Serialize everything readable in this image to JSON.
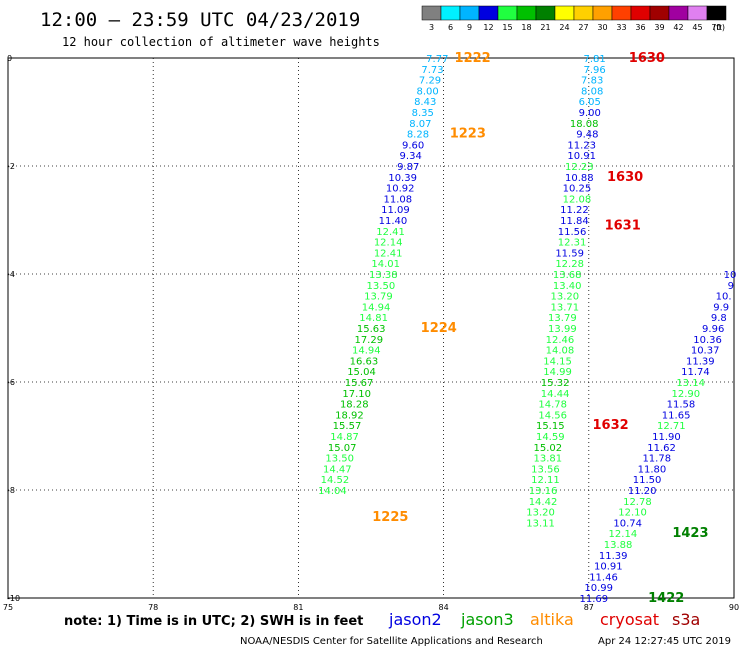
{
  "header": {
    "title": "12:00 — 23:59 UTC 04/23/2019",
    "subtitle": "12 hour collection of altimeter wave heights"
  },
  "colorbar": {
    "unit": "(ft)",
    "steps": [
      {
        "label": "3",
        "color": "#808080"
      },
      {
        "label": "6",
        "color": "#00f0ff"
      },
      {
        "label": "9",
        "color": "#00b4ff"
      },
      {
        "label": "12",
        "color": "#0000e0"
      },
      {
        "label": "15",
        "color": "#20ff40"
      },
      {
        "label": "18",
        "color": "#00c000"
      },
      {
        "label": "21",
        "color": "#008000"
      },
      {
        "label": "24",
        "color": "#ffff00"
      },
      {
        "label": "27",
        "color": "#ffd000"
      },
      {
        "label": "30",
        "color": "#ffa000"
      },
      {
        "label": "33",
        "color": "#ff4000"
      },
      {
        "label": "36",
        "color": "#e00000"
      },
      {
        "label": "39",
        "color": "#a00000"
      },
      {
        "label": "42",
        "color": "#a000a0"
      },
      {
        "label": "45",
        "color": "#e080f0"
      },
      {
        "label": "70",
        "color": "#000000"
      }
    ]
  },
  "chart_data": {
    "type": "scatter",
    "xlim": [
      75,
      90
    ],
    "ylim": [
      -10,
      0
    ],
    "xticks": [
      75,
      78,
      81,
      84,
      87,
      90
    ],
    "yticks": [
      0,
      -2,
      -4,
      -6,
      -8,
      -10
    ],
    "grid": true,
    "color_scale": [
      {
        "max": 9,
        "color": "#00b4ff"
      },
      {
        "max": 12,
        "color": "#0000e0"
      },
      {
        "max": 15,
        "color": "#20ff40"
      },
      {
        "max": 21,
        "color": "#00c000"
      }
    ],
    "tracks": [
      {
        "name": "track-1",
        "points": [
          {
            "x": 84.1,
            "y": 0.0,
            "v": "7.77"
          },
          {
            "x": 84.0,
            "y": -0.2,
            "v": "7.73"
          },
          {
            "x": 83.95,
            "y": -0.4,
            "v": "7.29"
          },
          {
            "x": 83.9,
            "y": -0.6,
            "v": "8.00"
          },
          {
            "x": 83.85,
            "y": -0.8,
            "v": "8.43"
          },
          {
            "x": 83.8,
            "y": -1.0,
            "v": "8.35"
          },
          {
            "x": 83.75,
            "y": -1.2,
            "v": "8.07"
          },
          {
            "x": 83.7,
            "y": -1.4,
            "v": "8.28"
          },
          {
            "x": 83.6,
            "y": -1.6,
            "v": "9.60"
          },
          {
            "x": 83.55,
            "y": -1.8,
            "v": "9.34"
          },
          {
            "x": 83.5,
            "y": -2.0,
            "v": "9.87"
          },
          {
            "x": 83.45,
            "y": -2.2,
            "v": "10.39"
          },
          {
            "x": 83.4,
            "y": -2.4,
            "v": "10.92"
          },
          {
            "x": 83.35,
            "y": -2.6,
            "v": "11.08"
          },
          {
            "x": 83.3,
            "y": -2.8,
            "v": "11.09"
          },
          {
            "x": 83.25,
            "y": -3.0,
            "v": "11.40"
          },
          {
            "x": 83.2,
            "y": -3.2,
            "v": "12.41"
          },
          {
            "x": 83.15,
            "y": -3.4,
            "v": "12.14"
          },
          {
            "x": 83.15,
            "y": -3.6,
            "v": "12.41"
          },
          {
            "x": 83.1,
            "y": -3.8,
            "v": "14.01"
          },
          {
            "x": 83.05,
            "y": -4.0,
            "v": "13.38"
          },
          {
            "x": 83.0,
            "y": -4.2,
            "v": "13.50"
          },
          {
            "x": 82.95,
            "y": -4.4,
            "v": "13.79"
          },
          {
            "x": 82.9,
            "y": -4.6,
            "v": "14.94"
          },
          {
            "x": 82.85,
            "y": -4.8,
            "v": "14.81"
          },
          {
            "x": 82.8,
            "y": -5.0,
            "v": "15.63"
          },
          {
            "x": 82.75,
            "y": -5.2,
            "v": "17.29"
          },
          {
            "x": 82.7,
            "y": -5.4,
            "v": "14.94"
          },
          {
            "x": 82.65,
            "y": -5.6,
            "v": "16.63"
          },
          {
            "x": 82.6,
            "y": -5.8,
            "v": "15.04"
          },
          {
            "x": 82.55,
            "y": -6.0,
            "v": "15.67"
          },
          {
            "x": 82.5,
            "y": -6.2,
            "v": "17.10"
          },
          {
            "x": 82.45,
            "y": -6.4,
            "v": "18.28"
          },
          {
            "x": 82.35,
            "y": -6.6,
            "v": "18.92"
          },
          {
            "x": 82.3,
            "y": -6.8,
            "v": "15.57"
          },
          {
            "x": 82.25,
            "y": -7.0,
            "v": "14.87"
          },
          {
            "x": 82.2,
            "y": -7.2,
            "v": "15.07"
          },
          {
            "x": 82.15,
            "y": -7.4,
            "v": "13.50"
          },
          {
            "x": 82.1,
            "y": -7.6,
            "v": "14.47"
          },
          {
            "x": 82.05,
            "y": -7.8,
            "v": "14.52"
          },
          {
            "x": 82.0,
            "y": -8.0,
            "v": "14.04"
          }
        ]
      },
      {
        "name": "track-2",
        "points": [
          {
            "x": 87.35,
            "y": 0.0,
            "v": "7.81"
          },
          {
            "x": 87.35,
            "y": -0.2,
            "v": "7.96"
          },
          {
            "x": 87.3,
            "y": -0.4,
            "v": "7.83"
          },
          {
            "x": 87.3,
            "y": -0.6,
            "v": "8.08"
          },
          {
            "x": 87.25,
            "y": -0.8,
            "v": "6.05"
          },
          {
            "x": 87.25,
            "y": -1.0,
            "v": "9.00"
          },
          {
            "x": 87.2,
            "y": -1.2,
            "v": "18.08"
          },
          {
            "x": 87.2,
            "y": -1.4,
            "v": "9.48"
          },
          {
            "x": 87.15,
            "y": -1.6,
            "v": "11.23"
          },
          {
            "x": 87.15,
            "y": -1.8,
            "v": "10.91"
          },
          {
            "x": 87.1,
            "y": -2.0,
            "v": "12.23"
          },
          {
            "x": 87.1,
            "y": -2.2,
            "v": "10.88"
          },
          {
            "x": 87.05,
            "y": -2.4,
            "v": "10.25"
          },
          {
            "x": 87.05,
            "y": -2.6,
            "v": "12.08"
          },
          {
            "x": 87.0,
            "y": -2.8,
            "v": "11.22"
          },
          {
            "x": 87.0,
            "y": -3.0,
            "v": "11.84"
          },
          {
            "x": 86.95,
            "y": -3.2,
            "v": "11.56"
          },
          {
            "x": 86.95,
            "y": -3.4,
            "v": "12.31"
          },
          {
            "x": 86.9,
            "y": -3.6,
            "v": "11.59"
          },
          {
            "x": 86.9,
            "y": -3.8,
            "v": "12.28"
          },
          {
            "x": 86.85,
            "y": -4.0,
            "v": "13.68"
          },
          {
            "x": 86.85,
            "y": -4.2,
            "v": "13.40"
          },
          {
            "x": 86.8,
            "y": -4.4,
            "v": "13.20"
          },
          {
            "x": 86.8,
            "y": -4.6,
            "v": "13.71"
          },
          {
            "x": 86.75,
            "y": -4.8,
            "v": "13.79"
          },
          {
            "x": 86.75,
            "y": -5.0,
            "v": "13.99"
          },
          {
            "x": 86.7,
            "y": -5.2,
            "v": "12.46"
          },
          {
            "x": 86.7,
            "y": -5.4,
            "v": "14.08"
          },
          {
            "x": 86.65,
            "y": -5.6,
            "v": "14.15"
          },
          {
            "x": 86.65,
            "y": -5.8,
            "v": "14.99"
          },
          {
            "x": 86.6,
            "y": -6.0,
            "v": "15.32"
          },
          {
            "x": 86.6,
            "y": -6.2,
            "v": "14.44"
          },
          {
            "x": 86.55,
            "y": -6.4,
            "v": "14.78"
          },
          {
            "x": 86.55,
            "y": -6.6,
            "v": "14.56"
          },
          {
            "x": 86.5,
            "y": -6.8,
            "v": "15.15"
          },
          {
            "x": 86.5,
            "y": -7.0,
            "v": "14.59"
          },
          {
            "x": 86.45,
            "y": -7.2,
            "v": "15.02"
          },
          {
            "x": 86.45,
            "y": -7.4,
            "v": "13.81"
          },
          {
            "x": 86.4,
            "y": -7.6,
            "v": "13.56"
          },
          {
            "x": 86.4,
            "y": -7.8,
            "v": "12.11"
          },
          {
            "x": 86.35,
            "y": -8.0,
            "v": "13.16"
          },
          {
            "x": 86.35,
            "y": -8.2,
            "v": "14.42"
          },
          {
            "x": 86.3,
            "y": -8.4,
            "v": "13.20"
          },
          {
            "x": 86.3,
            "y": -8.6,
            "v": "13.11"
          }
        ]
      },
      {
        "name": "track-3",
        "points": [
          {
            "x": 90.05,
            "y": -4.0,
            "v": "10"
          },
          {
            "x": 90.0,
            "y": -4.2,
            "v": "9"
          },
          {
            "x": 89.95,
            "y": -4.4,
            "v": "10."
          },
          {
            "x": 89.9,
            "y": -4.6,
            "v": "9.9"
          },
          {
            "x": 89.85,
            "y": -4.8,
            "v": "9.8"
          },
          {
            "x": 89.8,
            "y": -5.0,
            "v": "9.96"
          },
          {
            "x": 89.75,
            "y": -5.2,
            "v": "10.36"
          },
          {
            "x": 89.7,
            "y": -5.4,
            "v": "10.37"
          },
          {
            "x": 89.6,
            "y": -5.6,
            "v": "11.39"
          },
          {
            "x": 89.5,
            "y": -5.8,
            "v": "11.74"
          },
          {
            "x": 89.4,
            "y": -6.0,
            "v": "13.14"
          },
          {
            "x": 89.3,
            "y": -6.2,
            "v": "12.90"
          },
          {
            "x": 89.2,
            "y": -6.4,
            "v": "11.58"
          },
          {
            "x": 89.1,
            "y": -6.6,
            "v": "11.65"
          },
          {
            "x": 89.0,
            "y": -6.8,
            "v": "12.71"
          },
          {
            "x": 88.9,
            "y": -7.0,
            "v": "11.90"
          },
          {
            "x": 88.8,
            "y": -7.2,
            "v": "11.62"
          },
          {
            "x": 88.7,
            "y": -7.4,
            "v": "11.78"
          },
          {
            "x": 88.6,
            "y": -7.6,
            "v": "11.80"
          },
          {
            "x": 88.5,
            "y": -7.8,
            "v": "11.50"
          },
          {
            "x": 88.4,
            "y": -8.0,
            "v": "11.20"
          },
          {
            "x": 88.3,
            "y": -8.2,
            "v": "12.78"
          },
          {
            "x": 88.2,
            "y": -8.4,
            "v": "12.10"
          },
          {
            "x": 88.1,
            "y": -8.6,
            "v": "10.74"
          },
          {
            "x": 88.0,
            "y": -8.8,
            "v": "12.14"
          },
          {
            "x": 87.9,
            "y": -9.0,
            "v": "13.88"
          },
          {
            "x": 87.8,
            "y": -9.2,
            "v": "11.39"
          },
          {
            "x": 87.7,
            "y": -9.4,
            "v": "10.91"
          },
          {
            "x": 87.6,
            "y": -9.6,
            "v": "11.46"
          },
          {
            "x": 87.5,
            "y": -9.8,
            "v": "10.99"
          },
          {
            "x": 87.4,
            "y": -10.0,
            "v": "11.69"
          }
        ]
      }
    ],
    "time_labels": [
      {
        "x": 84.6,
        "y": 0.0,
        "text": "1222",
        "color": "#ff8c00"
      },
      {
        "x": 84.5,
        "y": -1.4,
        "text": "1223",
        "color": "#ff8c00"
      },
      {
        "x": 83.9,
        "y": -5.0,
        "text": "1224",
        "color": "#ff8c00"
      },
      {
        "x": 82.9,
        "y": -8.5,
        "text": "1225",
        "color": "#ff8c00"
      },
      {
        "x": 88.2,
        "y": 0.0,
        "text": "1630",
        "color": "#e00000"
      },
      {
        "x": 87.75,
        "y": -2.2,
        "text": "1630",
        "color": "#e00000"
      },
      {
        "x": 87.7,
        "y": -3.1,
        "text": "1631",
        "color": "#e00000"
      },
      {
        "x": 87.45,
        "y": -6.8,
        "text": "1632",
        "color": "#e00000"
      },
      {
        "x": 89.1,
        "y": -8.8,
        "text": "1423",
        "color": "#008000"
      },
      {
        "x": 88.6,
        "y": -10.0,
        "text": "1422",
        "color": "#008000"
      }
    ]
  },
  "legend": {
    "note": "note: 1) Time is in UTC; 2) SWH is in feet",
    "satellites": [
      {
        "name": "jason2",
        "color": "#0000e0"
      },
      {
        "name": "jason3",
        "color": "#00a000"
      },
      {
        "name": "altika",
        "color": "#ff8c00"
      },
      {
        "name": "cryosat",
        "color": "#e00000"
      },
      {
        "name": "s3a",
        "color": "#a00000"
      }
    ]
  },
  "footer": {
    "credit": "NOAA/NESDIS Center for Satellite Applications and Research",
    "timestamp": "Apr 24 12:27:45 UTC 2019"
  }
}
